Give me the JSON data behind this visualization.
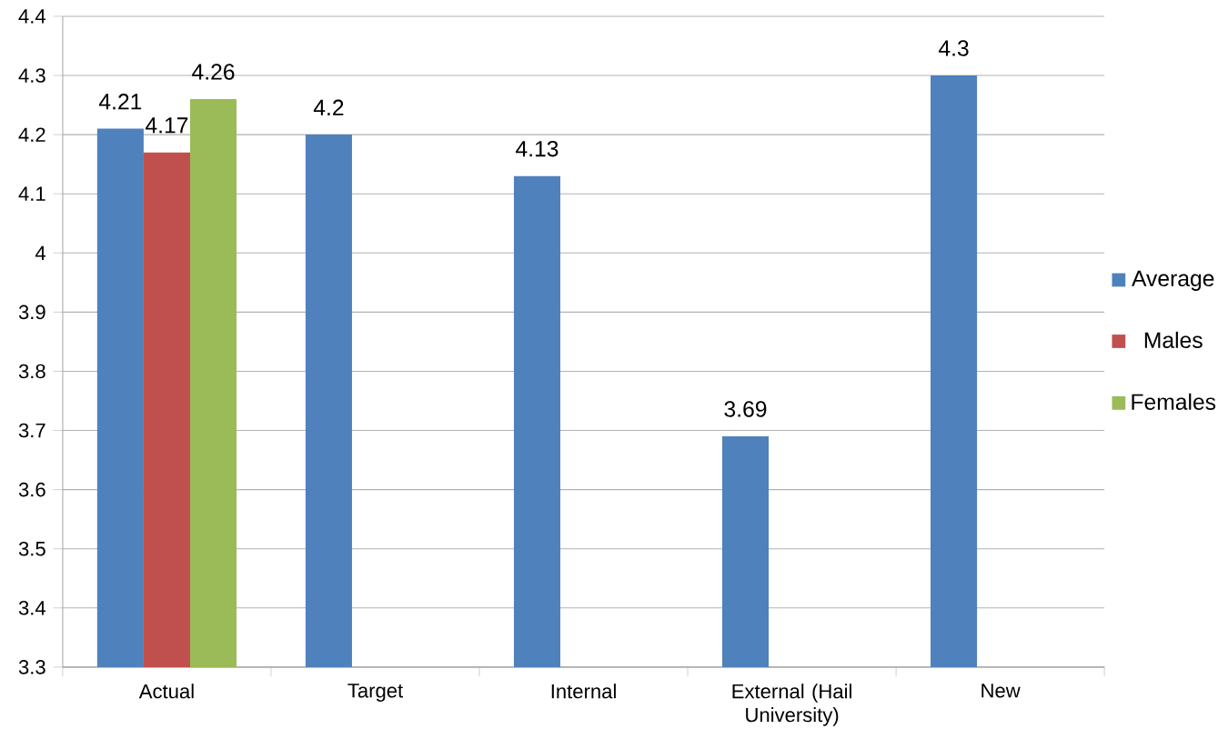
{
  "chart_data": {
    "type": "bar",
    "categories": [
      "Actual",
      "Target",
      "Internal",
      "External (Hail University)",
      "New"
    ],
    "series": [
      {
        "name": "Average",
        "color": "#4f81bd",
        "values": [
          4.21,
          4.2,
          4.13,
          3.69,
          4.3
        ]
      },
      {
        "name": "Males",
        "color": "#c0504d",
        "values": [
          4.17,
          null,
          null,
          null,
          null
        ]
      },
      {
        "name": "Females",
        "color": "#9bbb59",
        "values": [
          4.26,
          null,
          null,
          null,
          null
        ]
      }
    ],
    "ylim": [
      3.3,
      4.4
    ],
    "yticks": [
      3.3,
      3.4,
      3.5,
      3.6,
      3.7,
      3.8,
      3.9,
      4,
      4.1,
      4.2,
      4.3,
      4.4
    ],
    "grid": "y",
    "legend": "right",
    "data_labels": true
  }
}
